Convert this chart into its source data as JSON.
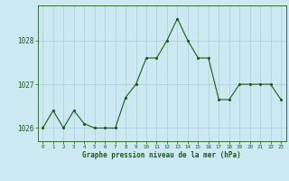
{
  "x": [
    0,
    1,
    2,
    3,
    4,
    5,
    6,
    7,
    8,
    9,
    10,
    11,
    12,
    13,
    14,
    15,
    16,
    17,
    18,
    19,
    20,
    21,
    22,
    23
  ],
  "y": [
    1026.0,
    1026.4,
    1026.0,
    1026.4,
    1026.1,
    1026.0,
    1026.0,
    1026.0,
    1026.7,
    1027.0,
    1027.6,
    1027.6,
    1028.0,
    1028.5,
    1028.0,
    1027.6,
    1027.6,
    1026.65,
    1026.65,
    1027.0,
    1027.0,
    1027.0,
    1027.0,
    1026.65
  ],
  "title": "Graphe pression niveau de la mer (hPa)",
  "bg_color": "#cce8f0",
  "line_color": "#1a5c1a",
  "marker_color": "#1a5c1a",
  "grid_color": "#aaccdd",
  "text_color": "#1a5c1a",
  "ylim": [
    1025.7,
    1028.8
  ],
  "yticks": [
    1026,
    1027,
    1028
  ],
  "xlim": [
    -0.5,
    23.5
  ]
}
